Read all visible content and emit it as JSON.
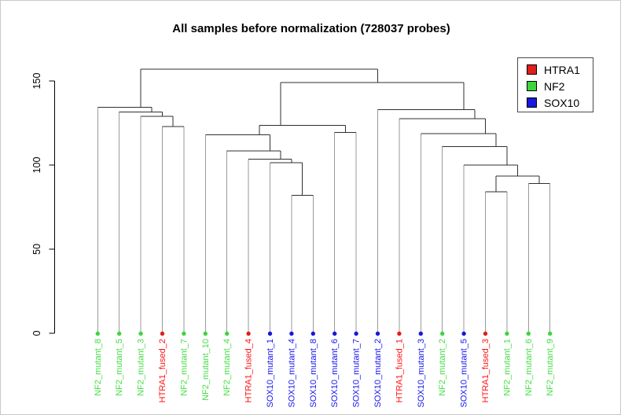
{
  "title": "All samples before normalization (728037 probes)",
  "legend": {
    "items": [
      {
        "label": "HTRA1",
        "color": "#e31c1c"
      },
      {
        "label": "NF2",
        "color": "#3fd43f"
      },
      {
        "label": "SOX10",
        "color": "#1717dd"
      }
    ]
  },
  "chart_data": {
    "type": "dendrogram",
    "title": "All samples before normalization (728037 probes)",
    "xlabel": "",
    "ylabel": "",
    "yticks": [
      0,
      50,
      100,
      150
    ],
    "ylim": [
      0,
      160
    ],
    "grid": false,
    "legend_position": "top-right",
    "groups": {
      "HTRA1": "#e31c1c",
      "NF2": "#3fd43f",
      "SOX10": "#1717dd"
    },
    "label_text_colors": {
      "HTRA1": "#ff1010",
      "NF2": "#44dd44",
      "SOX10": "#1515ee"
    },
    "branch_color": "#2f2f2f",
    "leaf_stem_color": "#9a9a9a",
    "leaves": [
      {
        "label": "NF2_mutant_8",
        "group": "NF2"
      },
      {
        "label": "NF2_mutant_5",
        "group": "NF2"
      },
      {
        "label": "NF2_mutant_3",
        "group": "NF2"
      },
      {
        "label": "HTRA1_fused_2",
        "group": "HTRA1"
      },
      {
        "label": "NF2_mutant_7",
        "group": "NF2"
      },
      {
        "label": "NF2_mutant_10",
        "group": "NF2"
      },
      {
        "label": "NF2_mutant_4",
        "group": "NF2"
      },
      {
        "label": "HTRA1_fused_4",
        "group": "HTRA1"
      },
      {
        "label": "SOX10_mutant_1",
        "group": "SOX10"
      },
      {
        "label": "SOX10_mutant_4",
        "group": "SOX10"
      },
      {
        "label": "SOX10_mutant_8",
        "group": "SOX10"
      },
      {
        "label": "SOX10_mutant_6",
        "group": "SOX10"
      },
      {
        "label": "SOX10_mutant_7",
        "group": "SOX10"
      },
      {
        "label": "SOX10_mutant_2",
        "group": "SOX10"
      },
      {
        "label": "HTRA1_fused_1",
        "group": "HTRA1"
      },
      {
        "label": "SOX10_mutant_3",
        "group": "SOX10"
      },
      {
        "label": "NF2_mutant_2",
        "group": "NF2"
      },
      {
        "label": "SOX10_mutant_5",
        "group": "SOX10"
      },
      {
        "label": "HTRA1_fused_3",
        "group": "HTRA1"
      },
      {
        "label": "NF2_mutant_1",
        "group": "NF2"
      },
      {
        "label": "NF2_mutant_6",
        "group": "NF2"
      },
      {
        "label": "NF2_mutant_9",
        "group": "NF2"
      }
    ],
    "merges": [
      {
        "id": "N1",
        "a": "L10",
        "b": "L11",
        "height": 82
      },
      {
        "id": "N2",
        "a": "L19",
        "b": "L20",
        "height": 84
      },
      {
        "id": "N3",
        "a": "L21",
        "b": "L22",
        "height": 89
      },
      {
        "id": "N4",
        "a": "N2",
        "b": "N3",
        "height": 93.5
      },
      {
        "id": "N5",
        "a": "L18",
        "b": "N4",
        "height": 100
      },
      {
        "id": "N6",
        "a": "L9",
        "b": "N1",
        "height": 101.5
      },
      {
        "id": "N7",
        "a": "L8",
        "b": "N6",
        "height": 103.5
      },
      {
        "id": "N8",
        "a": "L7",
        "b": "N7",
        "height": 108.5
      },
      {
        "id": "N9",
        "a": "L17",
        "b": "N5",
        "height": 111
      },
      {
        "id": "N10",
        "a": "L6",
        "b": "N8",
        "height": 118
      },
      {
        "id": "N11",
        "a": "L16",
        "b": "N9",
        "height": 118.7
      },
      {
        "id": "N12",
        "a": "L12",
        "b": "L13",
        "height": 119.3
      },
      {
        "id": "N13",
        "a": "L4",
        "b": "L5",
        "height": 123
      },
      {
        "id": "N14",
        "a": "N10",
        "b": "N12",
        "height": 123.5
      },
      {
        "id": "N15",
        "a": "L15",
        "b": "N11",
        "height": 127.6
      },
      {
        "id": "N16",
        "a": "L3",
        "b": "N13",
        "height": 129
      },
      {
        "id": "N17",
        "a": "L2",
        "b": "N16",
        "height": 131.6
      },
      {
        "id": "N18",
        "a": "L14",
        "b": "N15",
        "height": 133
      },
      {
        "id": "N19",
        "a": "L1",
        "b": "N17",
        "height": 134.4
      },
      {
        "id": "N20",
        "a": "N14",
        "b": "N18",
        "height": 149
      },
      {
        "id": "N21",
        "a": "N19",
        "b": "N20",
        "height": 157
      }
    ]
  }
}
